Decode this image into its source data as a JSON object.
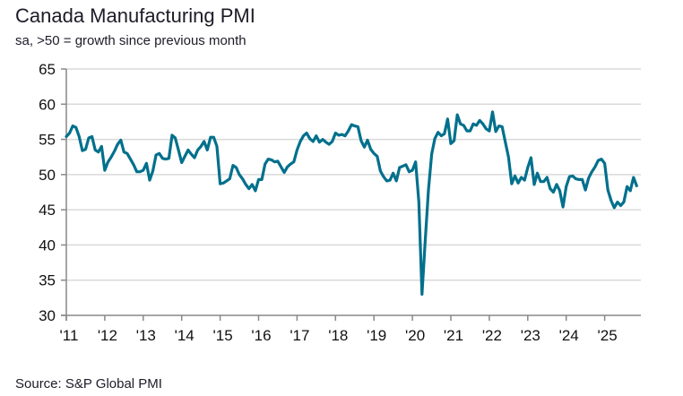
{
  "chart_data": {
    "type": "line",
    "title": "Canada Manufacturing PMI",
    "subtitle": "sa, >50 = growth since previous month",
    "source": "Source: S&P Global PMI",
    "xlabel": "",
    "ylabel": "",
    "ylim": [
      30,
      65
    ],
    "yticks": [
      30,
      35,
      40,
      45,
      50,
      55,
      60,
      65
    ],
    "xticks": [
      2011,
      2012,
      2013,
      2014,
      2015,
      2016,
      2017,
      2018,
      2019,
      2020,
      2021,
      2022,
      2023,
      2024,
      2025
    ],
    "xtick_labels": [
      "'11",
      "'12",
      "'13",
      "'14",
      "'15",
      "'16",
      "'17",
      "'18",
      "'19",
      "'20",
      "'21",
      "'22",
      "'23",
      "'24",
      "'25"
    ],
    "grid": "horizontal",
    "line_color": "#00708c",
    "start": "2011-01",
    "frequency": "monthly",
    "values": [
      55.4,
      55.9,
      56.9,
      56.7,
      55.4,
      53.4,
      53.6,
      55.2,
      55.4,
      53.5,
      53.2,
      54.0,
      50.6,
      51.8,
      52.5,
      53.3,
      54.3,
      54.9,
      53.2,
      53.0,
      52.2,
      51.4,
      50.4,
      50.4,
      50.6,
      51.6,
      49.2,
      50.5,
      52.8,
      53.0,
      52.3,
      52.2,
      52.3,
      55.6,
      55.2,
      53.5,
      51.7,
      52.6,
      53.5,
      52.9,
      52.4,
      53.5,
      54.0,
      54.7,
      53.5,
      55.3,
      55.3,
      54.0,
      48.7,
      48.8,
      49.1,
      49.4,
      51.3,
      51.0,
      50.0,
      49.4,
      48.6,
      48.0,
      48.6,
      47.7,
      49.3,
      49.3,
      51.5,
      52.2,
      52.1,
      51.8,
      51.9,
      51.1,
      50.3,
      51.1,
      51.5,
      51.8,
      53.5,
      54.7,
      55.5,
      55.9,
      55.1,
      54.7,
      55.5,
      54.6,
      55.0,
      54.6,
      54.3,
      54.7,
      55.9,
      55.6,
      55.7,
      55.5,
      56.2,
      57.1,
      56.9,
      56.8,
      54.8,
      53.9,
      54.9,
      53.6,
      53.0,
      52.6,
      50.5,
      49.7,
      49.1,
      49.2,
      50.2,
      49.1,
      51.0,
      51.2,
      51.4,
      50.4,
      50.6,
      51.8,
      46.1,
      33.0,
      40.6,
      47.8,
      52.9,
      55.1,
      56.0,
      55.5,
      55.8,
      57.9,
      54.4,
      54.8,
      58.5,
      57.2,
      57.0,
      56.2,
      56.2,
      57.2,
      57.0,
      57.7,
      57.2,
      56.5,
      56.2,
      58.9,
      56.1,
      56.9,
      56.8,
      54.6,
      52.5,
      48.7,
      49.8,
      48.8,
      49.6,
      49.2,
      51.0,
      52.4,
      48.6,
      50.2,
      49.0,
      49.0,
      49.6,
      48.0,
      47.5,
      48.6,
      47.7,
      45.4,
      48.3,
      49.7,
      49.8,
      49.4,
      49.3,
      49.3,
      47.8,
      49.5,
      50.4,
      51.1,
      52.0,
      52.2,
      51.6,
      47.8,
      46.3,
      45.3,
      46.1,
      45.6,
      46.1,
      48.3,
      47.7,
      49.6,
      48.4
    ]
  }
}
